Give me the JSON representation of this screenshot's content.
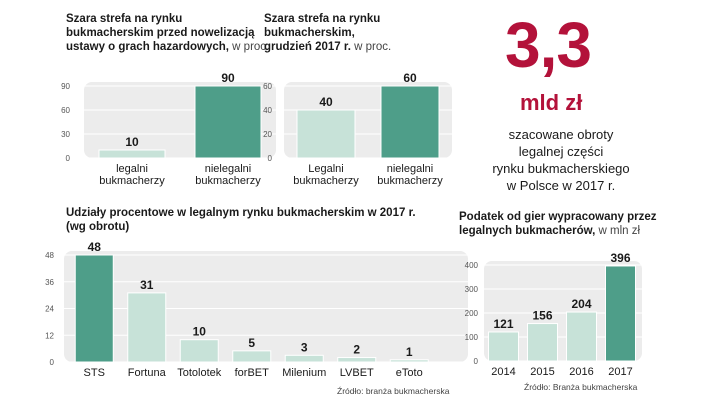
{
  "headline": {
    "value": "3,3",
    "unit": "mld zł",
    "description": [
      "szacowane obroty",
      "legalnej części",
      "rynku bukmacherskiego",
      "w Polsce w 2017 r."
    ]
  },
  "colors": {
    "light_bar": "#c7e2d8",
    "dark_bar": "#4e9e89",
    "bg_rail": "#ececec",
    "accent": "#b3123a"
  },
  "chart_data": [
    {
      "type": "bar",
      "title": [
        "Szara strefa na rynku",
        "bukmacherskim przed nowelizacją",
        "ustawy o grach hazardowych,"
      ],
      "unit": "w proc.",
      "categories": [
        [
          "legalni",
          "bukmacherzy"
        ],
        [
          "nielegalni",
          "bukmacherzy"
        ]
      ],
      "values": [
        10,
        90
      ],
      "value_labels": [
        "10",
        "90"
      ],
      "highlight": [
        false,
        true
      ],
      "yticks": [
        0,
        30,
        60,
        90
      ],
      "ylim": [
        0,
        90
      ]
    },
    {
      "type": "bar",
      "title": [
        "Szara strefa na rynku",
        "bukmacherskim,",
        "grudzień 2017 r."
      ],
      "unit": "w proc.",
      "categories": [
        [
          "Legalni",
          "bukmacherzy"
        ],
        [
          "nielegalni",
          "bukmacherzy"
        ]
      ],
      "values": [
        40,
        60
      ],
      "value_labels": [
        "40",
        "60"
      ],
      "highlight": [
        false,
        true
      ],
      "yticks": [
        0,
        20,
        40,
        60
      ],
      "ylim": [
        0,
        60
      ]
    },
    {
      "type": "bar",
      "title": [
        "Udziały procentowe w legalnym rynku bukmacherskim w 2017 r.",
        "(wg obrotu)"
      ],
      "unit": "",
      "categories": [
        [
          "STS"
        ],
        [
          "Fortuna"
        ],
        [
          "Totolotek"
        ],
        [
          "forBET"
        ],
        [
          "Milenium"
        ],
        [
          "LVBET"
        ],
        [
          "eToto"
        ]
      ],
      "values": [
        48,
        31,
        10,
        5,
        3,
        2,
        1
      ],
      "value_labels": [
        "48",
        "31",
        "10",
        "5",
        "3",
        "2",
        "1"
      ],
      "highlight": [
        true,
        false,
        false,
        false,
        false,
        false,
        false
      ],
      "yticks": [
        0,
        12,
        24,
        36,
        48
      ],
      "ylim": [
        0,
        48
      ],
      "source": "Źródło:  branża bukmacherska"
    },
    {
      "type": "bar",
      "title": [
        "Podatek od gier wypracowany przez",
        "legalnych bukmacherów,"
      ],
      "unit": "w mln zł",
      "categories": [
        [
          "2014"
        ],
        [
          "2015"
        ],
        [
          "2016"
        ],
        [
          "2017"
        ]
      ],
      "values": [
        121,
        156,
        204,
        396
      ],
      "value_labels": [
        "121",
        "156",
        "204",
        "396"
      ],
      "highlight": [
        false,
        false,
        false,
        true
      ],
      "yticks": [
        0,
        100,
        200,
        300,
        400
      ],
      "ylim": [
        0,
        400
      ],
      "source": "Źródło: Branża bukmacherska"
    }
  ]
}
